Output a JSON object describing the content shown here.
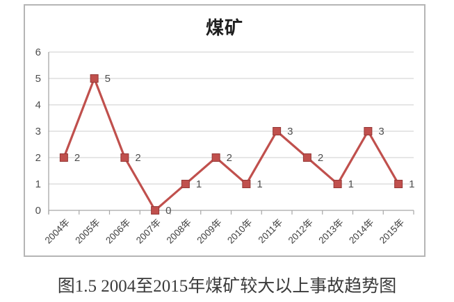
{
  "figure": {
    "caption": "图1.5 2004至2015年煤矿较大以上事故趋势图"
  },
  "chart_data": {
    "type": "line",
    "title": "煤矿",
    "categories": [
      "2004年",
      "2005年",
      "2006年",
      "2007年",
      "2008年",
      "2009年",
      "2010年",
      "2011年",
      "2012年",
      "2013年",
      "2014年",
      "2015年"
    ],
    "values": [
      2,
      5,
      2,
      0,
      1,
      2,
      1,
      3,
      2,
      1,
      3,
      1
    ],
    "ylim": [
      0,
      6
    ],
    "yticks": [
      0,
      1,
      2,
      3,
      4,
      5,
      6
    ],
    "grid": true,
    "legend": false,
    "data_labels": true,
    "marker": "square",
    "colors": {
      "line": "#c0504d",
      "marker_fill": "#c0504d",
      "marker_border": "#953735",
      "grid": "#d6d6d6",
      "axis": "#a6a6a6",
      "tick_label": "#4d4d4d",
      "data_label": "#4d4d4d",
      "title": "#1f1f1f",
      "frame_border": "#b5b5b5"
    }
  }
}
